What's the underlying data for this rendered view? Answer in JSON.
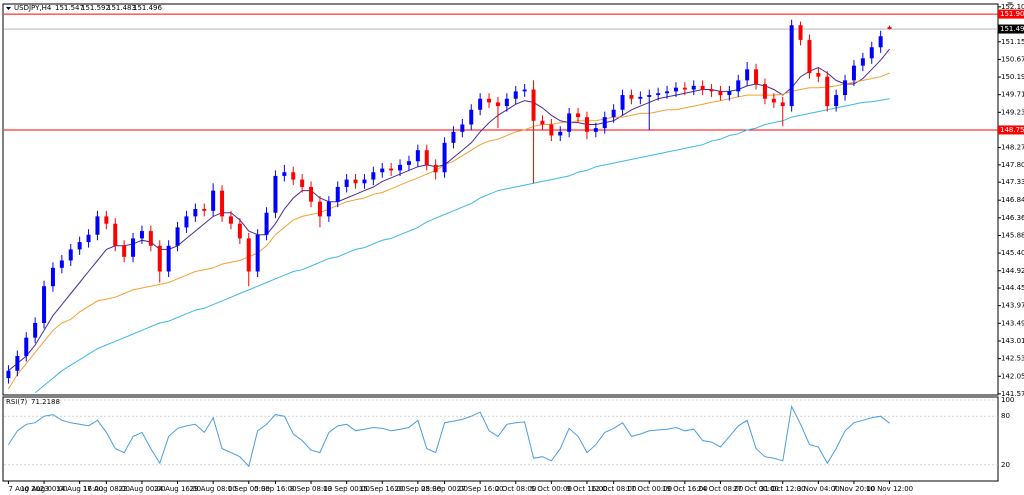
{
  "chart_data": {
    "type": "candlestick",
    "title": "USDJPY,H4",
    "categories": [
      "7 Aug 2023",
      null,
      null,
      null,
      "10 Aug 00:00",
      null,
      null,
      null,
      "14 Aug 16:00",
      null,
      null,
      "17 Aug 08:00",
      null,
      null,
      null,
      "22 Aug 00:00",
      null,
      null,
      null,
      "24 Aug 16:00",
      null,
      null,
      null,
      "29 Aug 08:00",
      null,
      null,
      null,
      "1 Sep 00:00",
      null,
      null,
      "5 Sep 16:00",
      null,
      null,
      null,
      "8 Sep 08:00",
      null,
      null,
      null,
      "13 Sep 00:00",
      null,
      null,
      null,
      "15 Sep 16:00",
      null,
      null,
      null,
      "20 Sep 08:00",
      null,
      null,
      "25 Sep 00:00",
      null,
      null,
      null,
      "27 Sep 16:00",
      null,
      null,
      null,
      "2 Oct 08:00",
      null,
      null,
      null,
      "5 Oct 00:00",
      null,
      null,
      null,
      "9 Oct 16:00",
      null,
      null,
      "12 Oct 08:00",
      null,
      null,
      null,
      "17 Oct 00:00",
      null,
      null,
      null,
      "19 Oct 16:00",
      null,
      null,
      null,
      "24 Oct 08:00",
      null,
      null,
      null,
      "27 Oct 00:00",
      null,
      null,
      "31 Oct 12:00",
      null,
      null,
      null,
      "3 Nov 04:00",
      null,
      null,
      null,
      "7 Nov 20:00",
      null,
      null,
      null,
      "10 Nov 12:00"
    ],
    "open": [
      142.0,
      142.2,
      142.6,
      143.1,
      143.5,
      144.5,
      145.0,
      145.2,
      145.5,
      145.7,
      145.9,
      146.4,
      146.2,
      145.6,
      145.3,
      145.8,
      146.0,
      145.6,
      144.9,
      145.6,
      146.1,
      146.4,
      146.6,
      146.55,
      147.1,
      146.4,
      146.2,
      145.8,
      144.9,
      145.9,
      146.5,
      147.5,
      147.6,
      147.4,
      147.2,
      146.8,
      146.4,
      146.8,
      147.2,
      147.4,
      147.3,
      147.4,
      147.6,
      147.7,
      147.65,
      147.8,
      147.9,
      148.2,
      147.8,
      147.6,
      148.4,
      148.7,
      148.9,
      149.3,
      149.6,
      149.5,
      149.4,
      149.6,
      149.8,
      149.85,
      149.0,
      148.9,
      148.6,
      148.7,
      149.2,
      149.1,
      148.7,
      148.8,
      149.1,
      149.3,
      149.7,
      149.6,
      149.65,
      149.7,
      149.75,
      149.8,
      149.9,
      149.85,
      149.95,
      149.85,
      149.8,
      149.7,
      149.8,
      150.1,
      150.4,
      150.0,
      149.6,
      149.5,
      149.4,
      151.6,
      151.2,
      150.3,
      150.2,
      149.4,
      149.7,
      150.1,
      150.5,
      150.7,
      151.0,
      151.547
    ],
    "high": [
      142.35,
      142.75,
      143.25,
      143.65,
      144.65,
      145.15,
      145.35,
      145.65,
      145.85,
      146.05,
      146.55,
      146.55,
      146.35,
      145.75,
      145.95,
      146.15,
      146.15,
      145.75,
      145.75,
      146.25,
      146.55,
      146.75,
      146.75,
      147.3,
      147.25,
      146.55,
      146.35,
      145.95,
      146.05,
      146.65,
      147.65,
      147.8,
      147.75,
      147.55,
      147.35,
      146.95,
      146.95,
      147.35,
      147.55,
      147.55,
      147.55,
      147.75,
      147.85,
      147.85,
      147.95,
      148.05,
      148.35,
      148.35,
      147.95,
      148.55,
      148.85,
      149.05,
      149.45,
      149.75,
      149.75,
      149.65,
      149.75,
      149.95,
      150.0,
      150.1,
      149.15,
      149.05,
      148.85,
      149.35,
      149.35,
      149.25,
      148.95,
      149.25,
      149.45,
      149.85,
      149.85,
      149.8,
      149.85,
      149.9,
      149.95,
      150.05,
      150.05,
      150.1,
      150.1,
      150.0,
      149.95,
      149.95,
      150.25,
      150.6,
      150.55,
      150.15,
      149.75,
      149.65,
      151.75,
      151.7,
      151.35,
      150.45,
      150.35,
      149.85,
      150.25,
      150.65,
      150.85,
      151.15,
      151.45,
      151.592
    ],
    "low": [
      141.85,
      142.05,
      142.45,
      142.95,
      143.35,
      144.35,
      144.85,
      145.05,
      145.35,
      145.55,
      145.75,
      146.05,
      145.45,
      145.15,
      145.15,
      145.65,
      145.45,
      144.6,
      144.75,
      145.45,
      145.95,
      146.25,
      146.4,
      146.4,
      146.25,
      146.05,
      145.65,
      144.5,
      144.75,
      145.75,
      146.35,
      147.35,
      147.25,
      147.05,
      146.65,
      146.1,
      146.25,
      146.65,
      147.05,
      147.15,
      147.15,
      147.25,
      147.45,
      147.5,
      147.5,
      147.65,
      147.75,
      147.65,
      147.4,
      147.45,
      148.25,
      148.55,
      148.75,
      149.15,
      149.35,
      148.8,
      149.25,
      149.45,
      149.65,
      147.3,
      148.75,
      148.45,
      148.45,
      148.55,
      148.95,
      148.5,
      148.55,
      148.65,
      148.95,
      149.15,
      149.45,
      149.45,
      148.75,
      149.55,
      149.6,
      149.65,
      149.7,
      149.7,
      149.7,
      149.65,
      149.55,
      149.55,
      149.65,
      149.95,
      149.85,
      149.45,
      149.35,
      148.85,
      149.25,
      151.05,
      150.15,
      150.05,
      149.25,
      149.25,
      149.55,
      149.95,
      150.35,
      150.55,
      150.85,
      151.483
    ],
    "close": [
      142.2,
      142.6,
      143.1,
      143.5,
      144.5,
      145.0,
      145.2,
      145.5,
      145.7,
      145.9,
      146.4,
      146.2,
      145.6,
      145.3,
      145.8,
      146.0,
      145.6,
      144.9,
      145.6,
      146.1,
      146.4,
      146.6,
      146.55,
      147.1,
      146.4,
      146.2,
      145.8,
      144.9,
      145.9,
      146.5,
      147.5,
      147.6,
      147.4,
      147.2,
      146.8,
      146.4,
      146.8,
      147.2,
      147.4,
      147.3,
      147.4,
      147.6,
      147.7,
      147.65,
      147.8,
      147.9,
      148.2,
      147.8,
      147.6,
      148.4,
      148.7,
      148.9,
      149.3,
      149.6,
      149.5,
      149.4,
      149.6,
      149.8,
      149.85,
      149.0,
      148.9,
      148.6,
      148.7,
      149.2,
      149.1,
      148.7,
      148.8,
      149.1,
      149.3,
      149.7,
      149.6,
      149.65,
      149.7,
      149.75,
      149.8,
      149.9,
      149.85,
      149.95,
      149.85,
      149.8,
      149.7,
      149.8,
      150.1,
      150.4,
      150.0,
      149.6,
      149.5,
      149.4,
      151.6,
      151.2,
      150.3,
      150.2,
      149.4,
      149.7,
      150.1,
      150.5,
      150.7,
      151.0,
      151.3,
      151.496
    ],
    "up_color": "#0000ff",
    "down_color": "#ff0000",
    "indicators": [
      {
        "color": "#4b2c8f",
        "values": [
          142.2,
          142.4,
          142.6,
          142.9,
          143.3,
          143.7,
          144.0,
          144.3,
          144.6,
          144.9,
          145.2,
          145.5,
          145.6,
          145.6,
          145.65,
          145.75,
          145.7,
          145.5,
          145.5,
          145.6,
          145.8,
          146.0,
          146.2,
          146.4,
          146.5,
          146.5,
          146.3,
          146.0,
          145.9,
          145.9,
          146.2,
          146.6,
          146.9,
          147.1,
          147.1,
          146.9,
          146.8,
          146.8,
          146.9,
          147.0,
          147.1,
          147.2,
          147.35,
          147.45,
          147.55,
          147.65,
          147.75,
          147.8,
          147.75,
          147.8,
          148.0,
          148.2,
          148.4,
          148.7,
          148.95,
          149.15,
          149.3,
          149.45,
          149.55,
          149.5,
          149.35,
          149.15,
          149.0,
          148.95,
          148.95,
          148.9,
          148.9,
          148.95,
          149.0,
          149.15,
          149.3,
          149.4,
          149.5,
          149.6,
          149.65,
          149.7,
          149.75,
          149.8,
          149.85,
          149.85,
          149.8,
          149.8,
          149.85,
          149.95,
          150.0,
          149.95,
          149.85,
          149.7,
          149.9,
          150.2,
          150.35,
          150.45,
          150.3,
          150.1,
          150.0,
          150.0,
          150.15,
          150.4,
          150.65,
          150.95
        ]
      },
      {
        "color": "#f5a030",
        "values": [
          141.7,
          142.1,
          142.4,
          142.7,
          143.0,
          143.3,
          143.5,
          143.6,
          143.8,
          143.95,
          144.1,
          144.15,
          144.2,
          144.3,
          144.4,
          144.45,
          144.5,
          144.55,
          144.6,
          144.7,
          144.8,
          144.9,
          144.95,
          145.0,
          145.1,
          145.15,
          145.2,
          145.3,
          145.4,
          145.6,
          145.9,
          146.1,
          146.3,
          146.4,
          146.45,
          146.5,
          146.6,
          146.7,
          146.8,
          146.85,
          146.9,
          147.0,
          147.05,
          147.15,
          147.25,
          147.35,
          147.45,
          147.55,
          147.65,
          147.8,
          147.9,
          148.05,
          148.2,
          148.35,
          148.45,
          148.5,
          148.6,
          148.7,
          148.75,
          148.85,
          148.9,
          148.9,
          148.95,
          148.95,
          149.0,
          149.0,
          149.0,
          149.05,
          149.1,
          149.1,
          149.15,
          149.2,
          149.2,
          149.25,
          149.3,
          149.3,
          149.35,
          149.4,
          149.45,
          149.5,
          149.55,
          149.6,
          149.65,
          149.7,
          149.7,
          149.7,
          149.7,
          149.72,
          149.8,
          149.85,
          149.9,
          149.9,
          149.92,
          149.95,
          150.0,
          150.05,
          150.1,
          150.15,
          150.2,
          150.3
        ]
      },
      {
        "color": "#3cb8e8",
        "values": [
          null,
          null,
          null,
          141.6,
          141.8,
          142.0,
          142.2,
          142.35,
          142.5,
          142.65,
          142.8,
          142.9,
          143.0,
          143.1,
          143.2,
          143.3,
          143.4,
          143.5,
          143.55,
          143.65,
          143.75,
          143.85,
          143.9,
          144.0,
          144.1,
          144.2,
          144.3,
          144.4,
          144.5,
          144.6,
          144.7,
          144.8,
          144.9,
          144.95,
          145.05,
          145.15,
          145.25,
          145.3,
          145.4,
          145.5,
          145.55,
          145.65,
          145.75,
          145.8,
          145.9,
          146.0,
          146.1,
          146.25,
          146.35,
          146.45,
          146.55,
          146.65,
          146.75,
          146.9,
          147.0,
          147.1,
          147.15,
          147.2,
          147.25,
          147.3,
          147.35,
          147.4,
          147.45,
          147.5,
          147.6,
          147.65,
          147.75,
          147.8,
          147.85,
          147.9,
          147.95,
          148.0,
          148.05,
          148.1,
          148.15,
          148.2,
          148.25,
          148.3,
          148.35,
          148.45,
          148.5,
          148.6,
          148.65,
          148.75,
          148.8,
          148.9,
          148.95,
          149.0,
          149.1,
          149.15,
          149.2,
          149.25,
          149.3,
          149.35,
          149.4,
          149.45,
          149.5,
          149.52,
          149.56,
          149.6
        ]
      }
    ],
    "hlines": [
      {
        "value": 151.903,
        "color": "#ff0000"
      },
      {
        "value": 148.751,
        "color": "#ff0000"
      }
    ],
    "ylim": [
      141.54,
      152.15
    ],
    "yticks": [
      {
        "value": 152.1,
        "label": "152.100"
      },
      {
        "value": 151.15,
        "label": "151.150"
      },
      {
        "value": 150.67,
        "label": "150.670"
      },
      {
        "value": 150.19,
        "label": "150.190"
      },
      {
        "value": 149.71,
        "label": "149.710"
      },
      {
        "value": 149.23,
        "label": "149.230"
      },
      {
        "value": 148.27,
        "label": "148.270"
      },
      {
        "value": 147.8,
        "label": "147.800"
      },
      {
        "value": 147.33,
        "label": "147.330"
      },
      146.84,
      {
        "value": 146.36,
        "label": "146.360"
      },
      145.88,
      {
        "value": 145.4,
        "label": "145.400"
      },
      {
        "value": 144.92,
        "label": "144.920"
      },
      {
        "value": 144.45,
        "label": "144.450"
      },
      {
        "value": 143.97,
        "label": "143.970"
      },
      {
        "value": 143.49,
        "label": "143.490"
      },
      {
        "value": 143.01,
        "label": "143.010"
      },
      142.53,
      {
        "value": 142.05,
        "label": "142.050"
      },
      {
        "value": 141.57,
        "label": "141.570"
      }
    ],
    "rsi": {
      "title": "RSI(7)",
      "color": "#4a9de0",
      "values": [
        45,
        62,
        70,
        72,
        80,
        82,
        75,
        72,
        70,
        68,
        75,
        60,
        40,
        35,
        55,
        60,
        40,
        22,
        55,
        65,
        68,
        70,
        60,
        78,
        40,
        35,
        30,
        18,
        62,
        70,
        82,
        80,
        58,
        50,
        38,
        35,
        60,
        68,
        70,
        62,
        64,
        66,
        65,
        62,
        64,
        66,
        75,
        40,
        35,
        72,
        74,
        76,
        80,
        85,
        62,
        55,
        70,
        72,
        73,
        28,
        30,
        25,
        40,
        65,
        55,
        35,
        45,
        60,
        65,
        72,
        55,
        58,
        62,
        63,
        64,
        66,
        62,
        64,
        50,
        48,
        42,
        55,
        68,
        75,
        40,
        30,
        28,
        25,
        92,
        70,
        45,
        42,
        22,
        40,
        62,
        72,
        75,
        78,
        80,
        71.2188
      ],
      "ylim": [
        0,
        100
      ],
      "yticks": [
        100,
        80,
        20
      ]
    }
  }
}
